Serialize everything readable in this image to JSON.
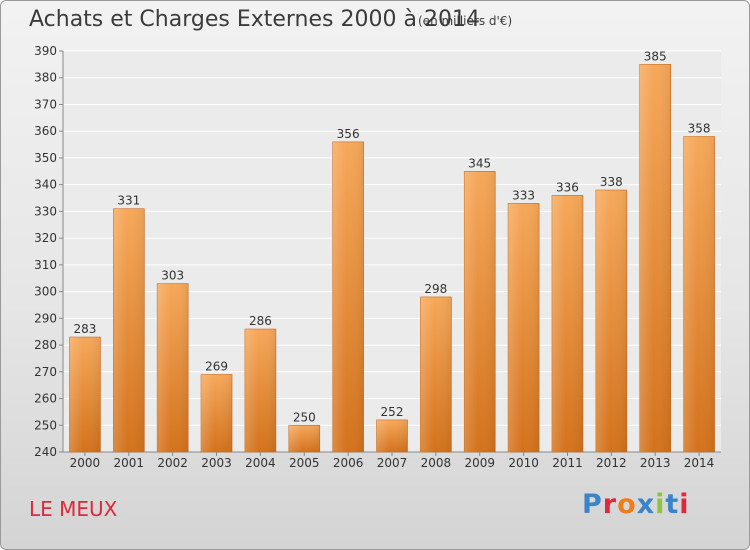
{
  "header": {
    "title": "Achats et Charges Externes 2000 à 2014",
    "subtitle": "(en milliers d'€)"
  },
  "footer": {
    "commune": "LE MEUX",
    "logo_text": "Proxiti",
    "logo_colors": [
      "#3a85c8",
      "#e0283a",
      "#f07d1a",
      "#3a85c8",
      "#8cc63f",
      "#3a85c8",
      "#e0283a"
    ]
  },
  "colors": {
    "bar_top": "#f6a85a",
    "bar_bottom": "#d3721c",
    "grid": "#ffffff",
    "axis_text": "#333333"
  },
  "chart_data": {
    "type": "bar",
    "title": "Achats et Charges Externes 2000 à 2014",
    "subtitle": "(en milliers d'€)",
    "categories": [
      "2000",
      "2001",
      "2002",
      "2003",
      "2004",
      "2005",
      "2006",
      "2007",
      "2008",
      "2009",
      "2010",
      "2011",
      "2012",
      "2013",
      "2014"
    ],
    "values": [
      283,
      331,
      303,
      269,
      286,
      250,
      356,
      252,
      298,
      345,
      333,
      336,
      338,
      385,
      358
    ],
    "ylim": [
      240,
      390
    ],
    "yticks": [
      240,
      250,
      260,
      270,
      280,
      290,
      300,
      310,
      320,
      330,
      340,
      350,
      360,
      370,
      380,
      390
    ],
    "grid": true,
    "data_labels": true
  }
}
